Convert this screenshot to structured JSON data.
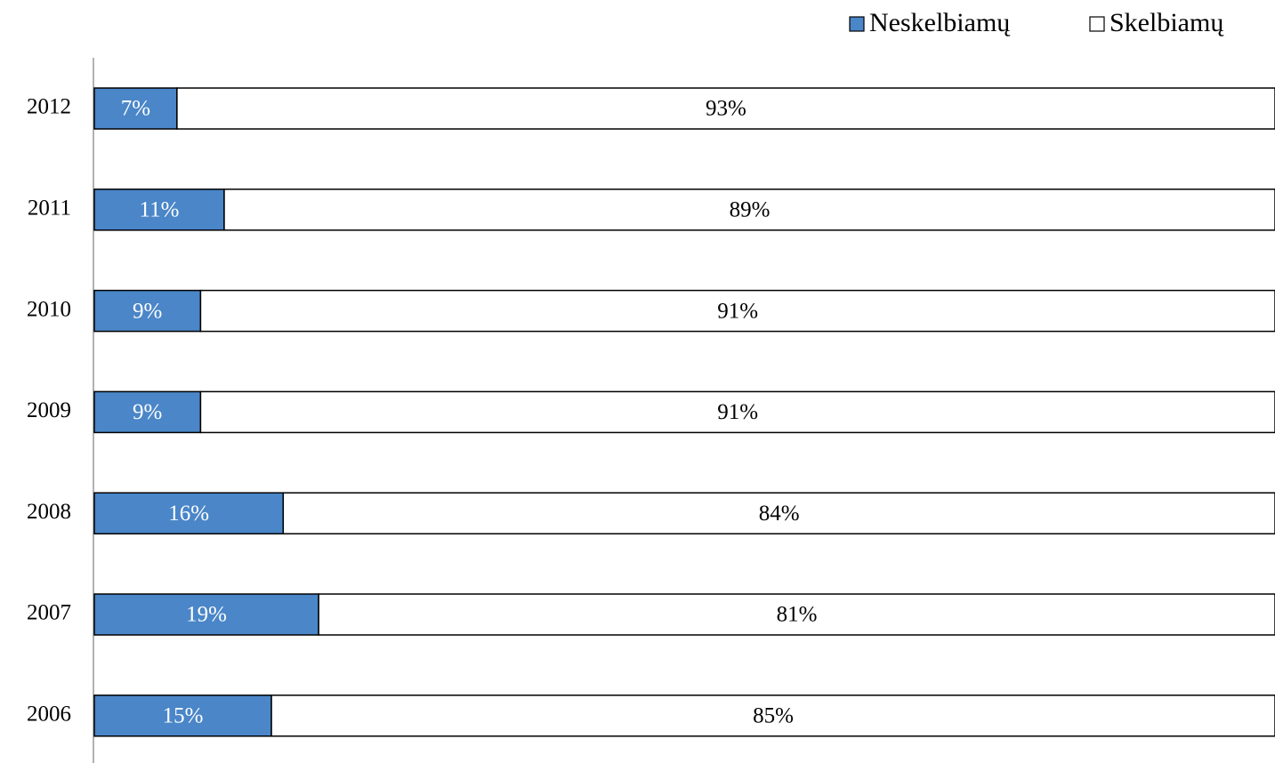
{
  "chart_data": {
    "type": "stacked_bar_horizontal",
    "categories": [
      "2012",
      "2011",
      "2010",
      "2009",
      "2008",
      "2007",
      "2006"
    ],
    "series": [
      {
        "name": "Neskelbiamų",
        "color": "#4a86c8",
        "values": [
          7,
          11,
          9,
          9,
          16,
          19,
          15
        ],
        "value_labels": [
          "7%",
          "11%",
          "9%",
          "9%",
          "16%",
          "19%",
          "15%"
        ]
      },
      {
        "name": "Skelbiamų",
        "color": "#ffffff",
        "values": [
          93,
          89,
          91,
          91,
          84,
          81,
          85
        ],
        "value_labels": [
          "93%",
          "89%",
          "91%",
          "91%",
          "84%",
          "81%",
          "85%"
        ]
      }
    ],
    "xlim": [
      0,
      100
    ],
    "legend": "top-right"
  }
}
